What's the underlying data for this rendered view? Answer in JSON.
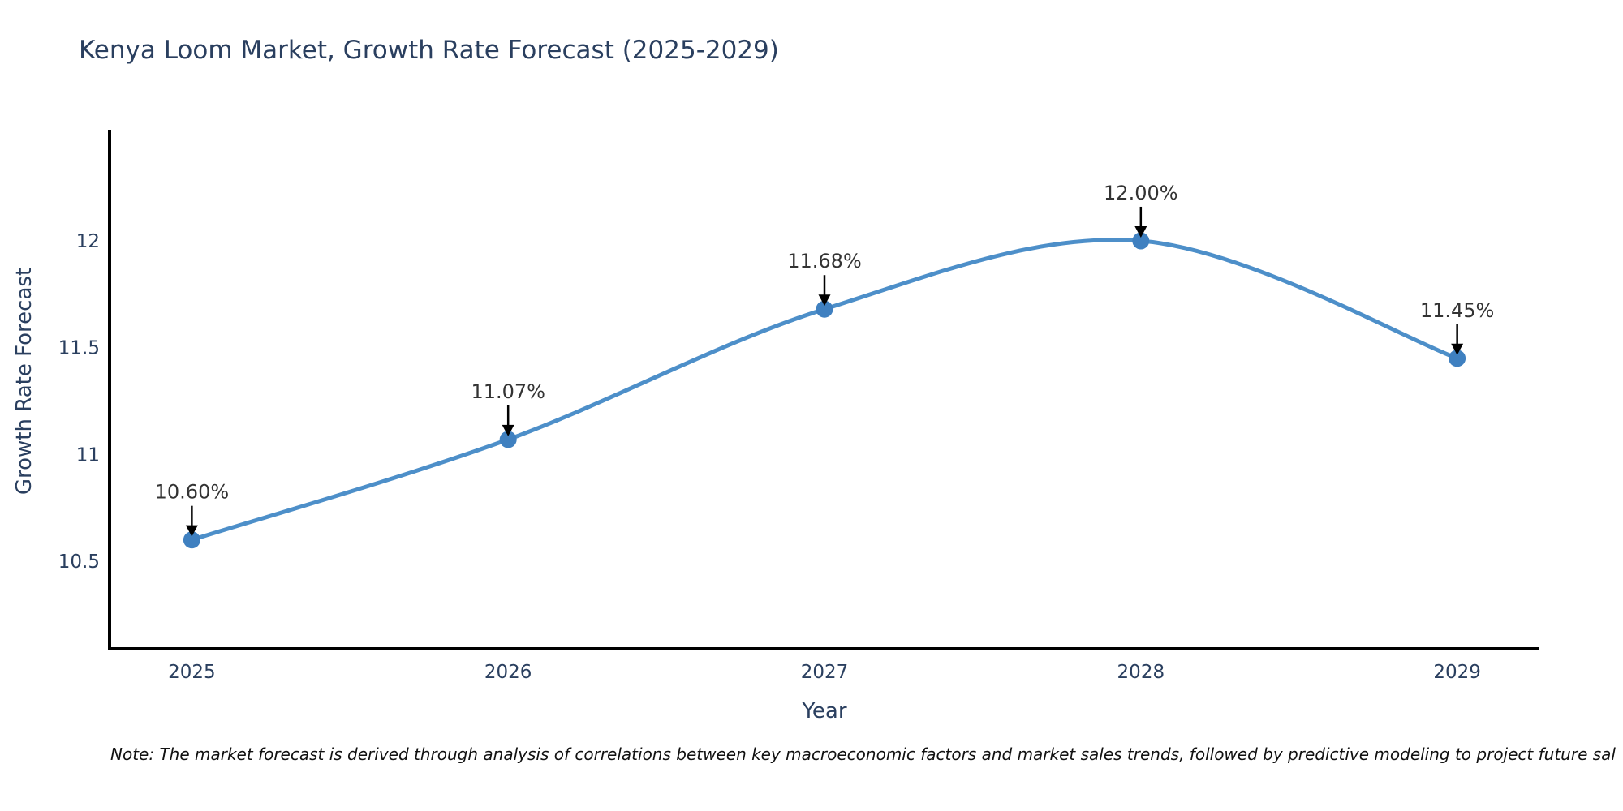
{
  "title": "Kenya Loom Market, Growth Rate Forecast (2025-2029)",
  "footnote": "Note: The market forecast is derived through analysis of correlations between key macroeconomic factors and market sales trends, followed by predictive modeling to project future sal",
  "chart_data": {
    "type": "line",
    "title": "Kenya Loom Market, Growth Rate Forecast (2025-2029)",
    "xlabel": "Year",
    "ylabel": "Growth Rate Forecast",
    "categories": [
      2025,
      2026,
      2027,
      2028,
      2029
    ],
    "values": [
      10.6,
      11.07,
      11.68,
      12.0,
      11.45
    ],
    "data_labels": [
      "10.60%",
      "11.07%",
      "11.68%",
      "12.00%",
      "11.45%"
    ],
    "yticks": [
      10.5,
      11,
      11.5,
      12
    ],
    "ytick_labels": [
      "10.5",
      "11",
      "11.5",
      "12"
    ],
    "xtick_labels": [
      "2025",
      "2026",
      "2027",
      "2028",
      "2029"
    ],
    "xlim": [
      2024.74,
      2029.26
    ],
    "ylim": [
      10.09,
      12.52
    ],
    "line_shape": "spline",
    "grid": false,
    "legend": "none",
    "colors": {
      "line": "#4d8fc9",
      "marker": "#3f80c0",
      "axis": "#000000",
      "tick_text": "#2a3f5f",
      "annotation_text": "#333333",
      "arrow": "#000000",
      "background": "#ffffff"
    }
  }
}
